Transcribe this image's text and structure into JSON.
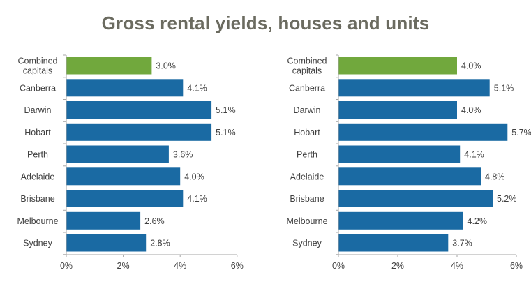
{
  "title": "Gross rental yields, houses and units",
  "colors": {
    "highlight": "#71a83d",
    "bar": "#1a6aa3",
    "axis": "#a6a6a6",
    "text": "#404040",
    "title": "#6b6b60"
  },
  "chart_data": [
    {
      "type": "bar",
      "orientation": "horizontal",
      "categories": [
        "Combined capitals",
        "Canberra",
        "Darwin",
        "Hobart",
        "Perth",
        "Adelaide",
        "Brisbane",
        "Melbourne",
        "Sydney"
      ],
      "category_lines": [
        [
          "Combined",
          "capitals"
        ],
        [
          "Canberra"
        ],
        [
          "Darwin"
        ],
        [
          "Hobart"
        ],
        [
          "Perth"
        ],
        [
          "Adelaide"
        ],
        [
          "Brisbane"
        ],
        [
          "Melbourne"
        ],
        [
          "Sydney"
        ]
      ],
      "values": [
        3.0,
        4.1,
        5.1,
        5.1,
        3.6,
        4.0,
        4.1,
        2.6,
        2.8
      ],
      "value_labels": [
        "3.0%",
        "4.1%",
        "5.1%",
        "5.1%",
        "3.6%",
        "4.0%",
        "4.1%",
        "2.6%",
        "2.8%"
      ],
      "highlight_index": 0,
      "xlim": [
        0,
        6
      ],
      "xticks": [
        0,
        2,
        4,
        6
      ],
      "xtick_labels": [
        "0%",
        "2%",
        "4%",
        "6%"
      ],
      "grid": false,
      "legend": "none"
    },
    {
      "type": "bar",
      "orientation": "horizontal",
      "categories": [
        "Combined capitals",
        "Canberra",
        "Darwin",
        "Hobart",
        "Perth",
        "Adelaide",
        "Brisbane",
        "Melbourne",
        "Sydney"
      ],
      "category_lines": [
        [
          "Combined",
          "capitals"
        ],
        [
          "Canberra"
        ],
        [
          "Darwin"
        ],
        [
          "Hobart"
        ],
        [
          "Perth"
        ],
        [
          "Adelaide"
        ],
        [
          "Brisbane"
        ],
        [
          "Melbourne"
        ],
        [
          "Sydney"
        ]
      ],
      "values": [
        4.0,
        5.1,
        4.0,
        5.7,
        4.1,
        4.8,
        5.2,
        4.2,
        3.7
      ],
      "value_labels": [
        "4.0%",
        "5.1%",
        "4.0%",
        "5.7%",
        "4.1%",
        "4.8%",
        "5.2%",
        "4.2%",
        "3.7%"
      ],
      "highlight_index": 0,
      "xlim": [
        0,
        6
      ],
      "xticks": [
        0,
        2,
        4,
        6
      ],
      "xtick_labels": [
        "0%",
        "2%",
        "4%",
        "6%"
      ],
      "grid": false,
      "legend": "none"
    }
  ]
}
